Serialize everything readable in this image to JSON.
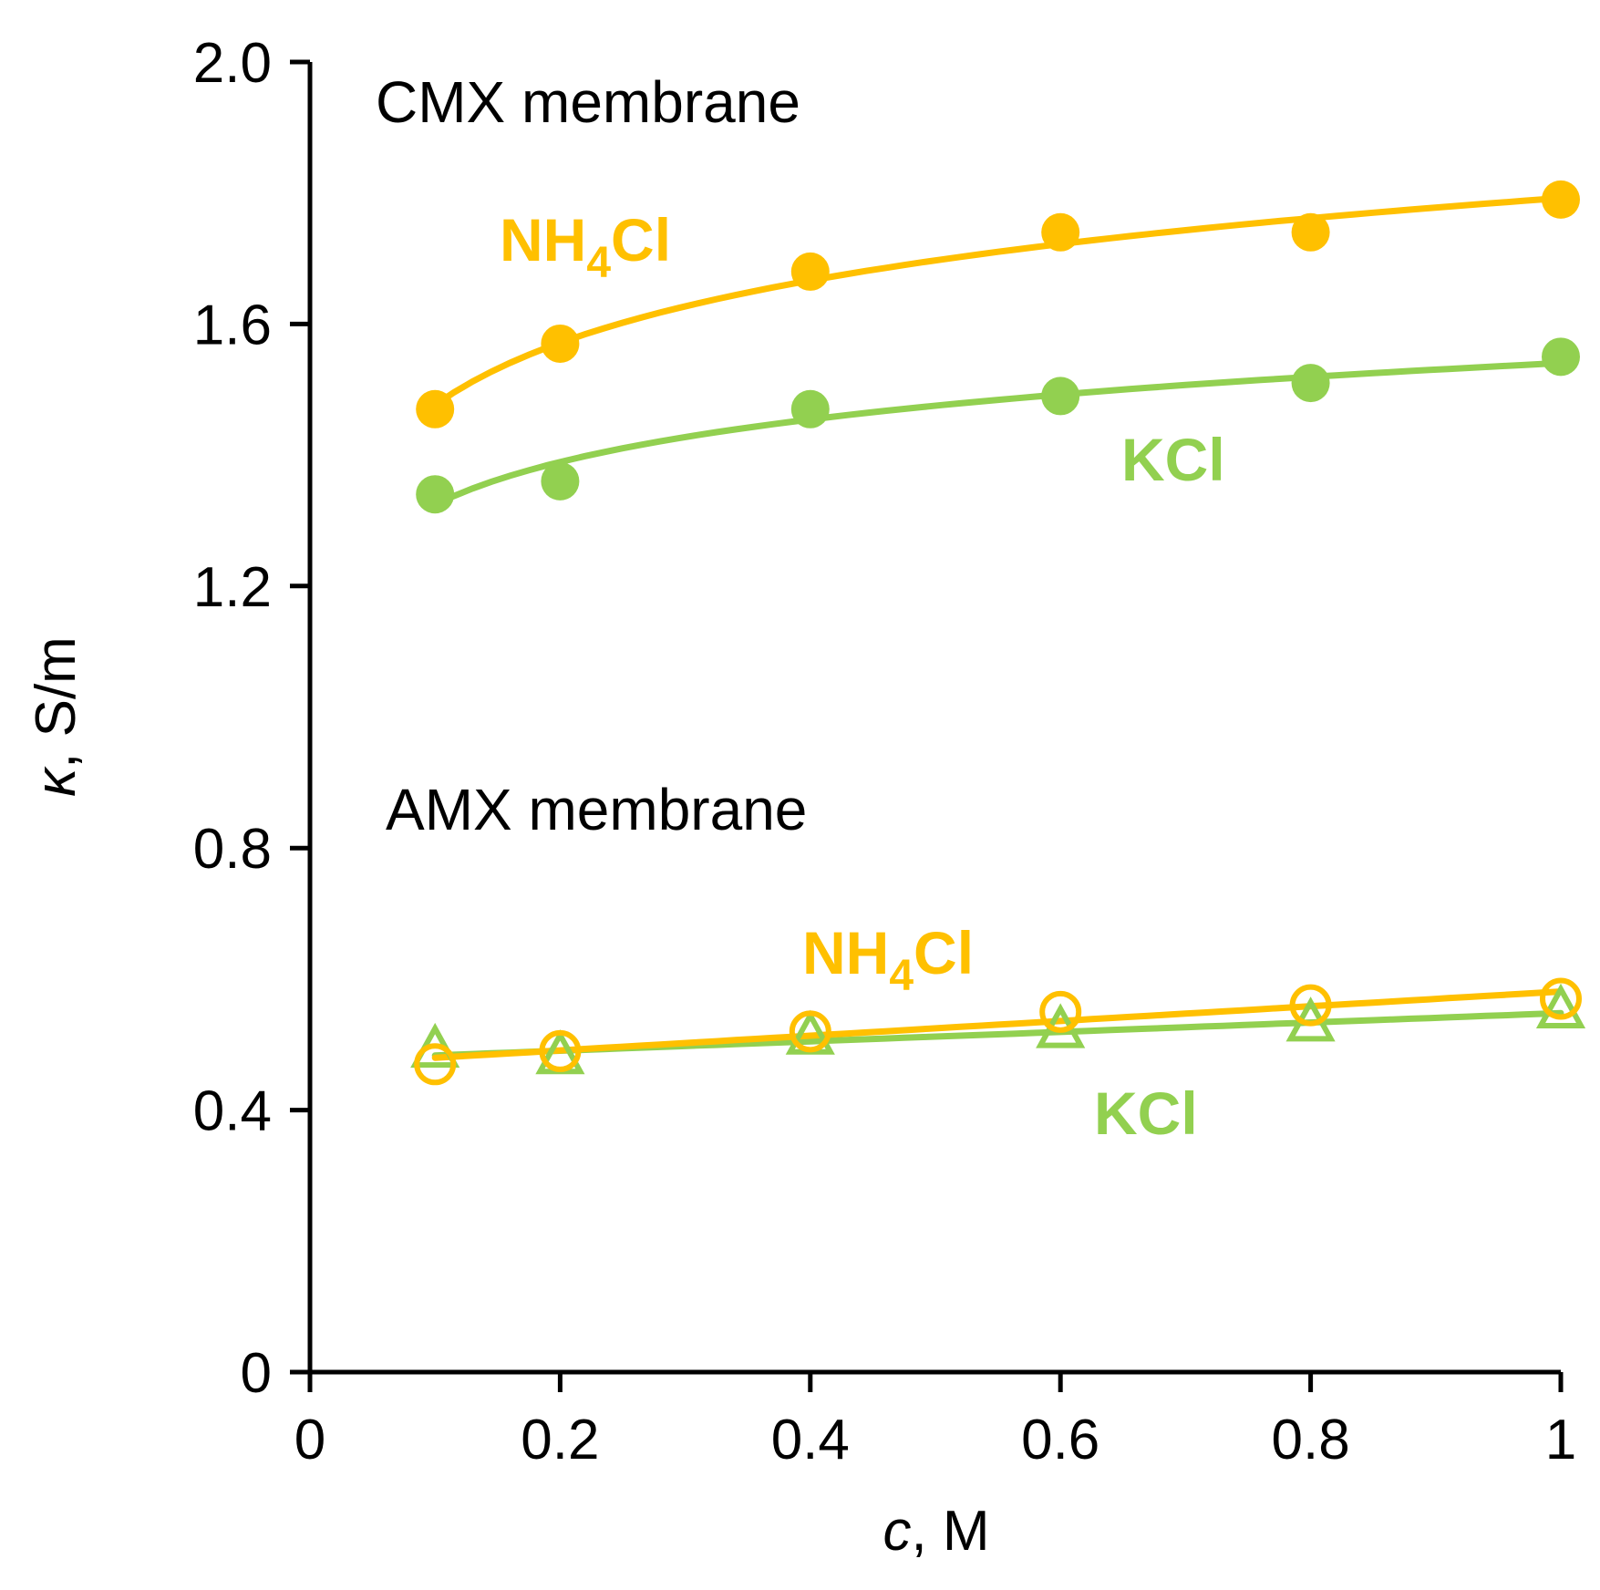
{
  "chart_data": {
    "type": "scatter",
    "title": "",
    "xlabel": {
      "var": "c",
      "unit": ", M"
    },
    "ylabel": {
      "var": "κ",
      "unit": ", S/m"
    },
    "xlim": [
      0,
      1
    ],
    "ylim": [
      0,
      2.0
    ],
    "xticks": [
      "0",
      "0.2",
      "0.4",
      "0.6",
      "0.8",
      "1"
    ],
    "yticks": [
      "0",
      "0.4",
      "0.8",
      "1.2",
      "1.6",
      "2.0"
    ],
    "grid": false,
    "annotations": {
      "cmx_title": "CMX membrane",
      "amx_title": "AMX membrane"
    },
    "colors": {
      "nh4cl": "#FFC000",
      "kcl": "#92D050"
    },
    "series": [
      {
        "name": "CMX NH4Cl",
        "label": {
          "main": "NH",
          "sub": "4",
          "rest": "Cl"
        },
        "marker": "filled-circle",
        "color": "#FFC000",
        "x": [
          0.1,
          0.2,
          0.4,
          0.6,
          0.8,
          1.0
        ],
        "y": [
          1.47,
          1.57,
          1.68,
          1.74,
          1.74,
          1.79
        ],
        "fit": "log"
      },
      {
        "name": "CMX KCl",
        "label": {
          "main": "KCl",
          "sub": "",
          "rest": ""
        },
        "marker": "filled-circle",
        "color": "#92D050",
        "x": [
          0.1,
          0.2,
          0.4,
          0.6,
          0.8,
          1.0
        ],
        "y": [
          1.34,
          1.36,
          1.47,
          1.49,
          1.51,
          1.55
        ],
        "fit": "log"
      },
      {
        "name": "AMX NH4Cl",
        "label": {
          "main": "NH",
          "sub": "4",
          "rest": "Cl"
        },
        "marker": "open-circle",
        "color": "#FFC000",
        "x": [
          0.1,
          0.2,
          0.4,
          0.6,
          0.8,
          1.0
        ],
        "y": [
          0.47,
          0.49,
          0.52,
          0.55,
          0.56,
          0.57
        ],
        "fit": "linear"
      },
      {
        "name": "AMX KCl",
        "label": {
          "main": "KCl",
          "sub": "",
          "rest": ""
        },
        "marker": "open-triangle",
        "color": "#92D050",
        "x": [
          0.1,
          0.2,
          0.4,
          0.6,
          0.8,
          1.0
        ],
        "y": [
          0.49,
          0.48,
          0.51,
          0.52,
          0.53,
          0.55
        ],
        "fit": "linear"
      }
    ]
  }
}
